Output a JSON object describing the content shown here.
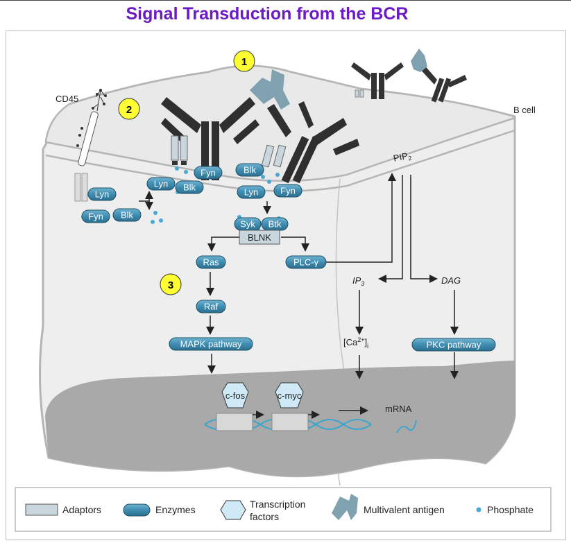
{
  "title": "Signal Transduction from the BCR",
  "markers": [
    "1",
    "2",
    "3"
  ],
  "labels": {
    "cd45": "CD45",
    "bcell": "B cell",
    "pip2": "PIP",
    "pip2_sub": "2",
    "ip3": "IP",
    "ip3_sub": "3",
    "dag": "DAG",
    "ca": "[Ca",
    "ca_sup": "2+",
    "ca_end": "]",
    "ca_sub": "i",
    "mrna": "mRNA"
  },
  "enzymes": {
    "lyn_left": "Lyn",
    "fyn_left": "Fyn",
    "blk_left": "Blk",
    "lyn_mid": "Lyn",
    "blk_mid": "Blk",
    "fyn_mid": "Fyn",
    "blk_right": "Blk",
    "lyn_right": "Lyn",
    "fyn_right": "Fyn",
    "syk": "Syk",
    "btk": "Btk",
    "plc": "PLC-γ",
    "ras": "Ras",
    "raf": "Raf",
    "mapk": "MAPK pathway",
    "pkc": "PKC pathway"
  },
  "adaptors": {
    "blnk": "BLNK"
  },
  "transcription_factors": [
    "c-fos",
    "c-myc"
  ],
  "legend": {
    "adaptors": "Adaptors",
    "enzymes": "Enzymes",
    "tf_line1": "Transcription",
    "tf_line2": "factors",
    "antigen": "Multivalent antigen",
    "phosphate": "Phosphate"
  },
  "colors": {
    "title": "#6a1bc6",
    "enzyme": "#3f8db1",
    "adaptor": "#c9d6de",
    "tf": "#cfeaf6",
    "antigen": "#7fa1b0",
    "phosphate": "#4aa7d4",
    "marker": "#ffff33",
    "nucleus": "#a6a6a6",
    "antibody": "#2f2f2f"
  }
}
